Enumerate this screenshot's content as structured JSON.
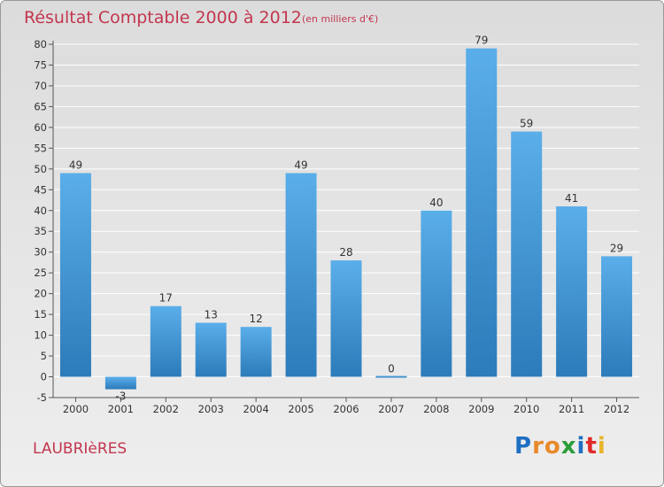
{
  "title": "Résultat Comptable 2000 à 2012",
  "subtitle": "(en milliers d'€)",
  "place": "LAUBRIèRES",
  "logo": {
    "text": "Proxiti",
    "letter_colors": [
      "#1e6fc2",
      "#e8892a",
      "#e8892a",
      "#2a9d3a",
      "#1e6fc2",
      "#e02a2a",
      "#e8b52a"
    ]
  },
  "colors": {
    "bar_top": "#5aaee9",
    "bar_bottom": "#2c7bba",
    "text_accent": "#c2364f"
  },
  "chart_data": {
    "type": "bar",
    "title": "Résultat Comptable 2000 à 2012",
    "subtitle": "(en milliers d'€)",
    "categories": [
      "2000",
      "2001",
      "2002",
      "2003",
      "2004",
      "2005",
      "2006",
      "2007",
      "2008",
      "2009",
      "2010",
      "2011",
      "2012"
    ],
    "values": [
      49,
      -3,
      17,
      13,
      12,
      49,
      28,
      0,
      40,
      79,
      59,
      41,
      29
    ],
    "data_labels": [
      "49",
      "-3",
      "17",
      "13",
      "12",
      "49",
      "28",
      "0",
      "40",
      "79",
      "59",
      "41",
      "29"
    ],
    "ylim": [
      -5,
      80
    ],
    "yticks": [
      -5,
      0,
      5,
      10,
      15,
      20,
      25,
      30,
      35,
      40,
      45,
      50,
      55,
      60,
      65,
      70,
      75,
      80
    ],
    "grid": true,
    "legend": false
  }
}
